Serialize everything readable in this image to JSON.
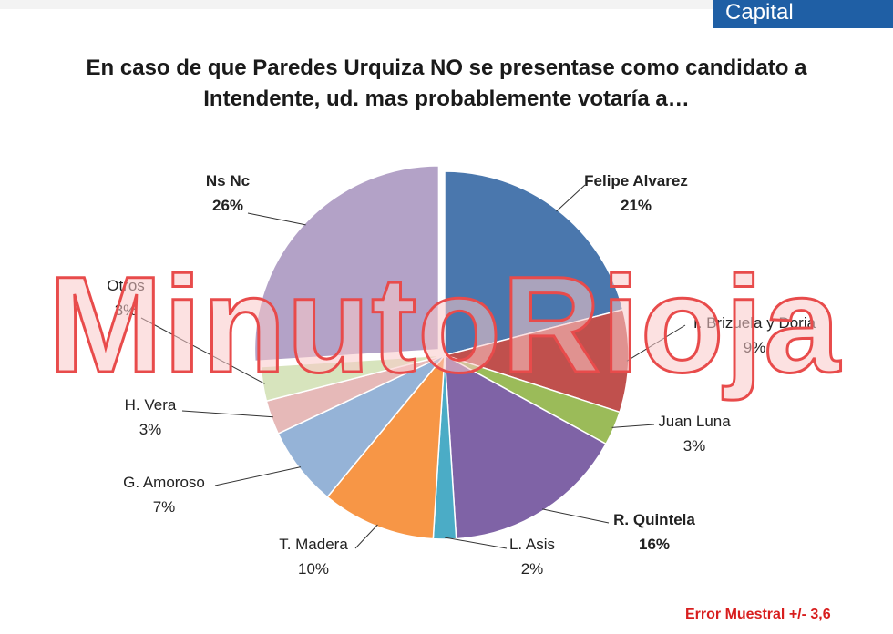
{
  "header": {
    "badge": "Capital"
  },
  "title_line1": "En caso de que Paredes Urquiza NO se presentase como candidato a",
  "title_line2": "Intendente, ud. mas probablemente  votaría a…",
  "watermark": "MinutoRioja",
  "footer": {
    "error_note": "Error Muestral +/- 3,6"
  },
  "colors": {
    "watermark_fill": "#f9c9c9",
    "watermark_stroke": "#e84b4b",
    "error_red": "#d81e1e",
    "badge_blue": "#1f5fa5"
  },
  "chart_data": {
    "type": "pie",
    "start": "12 o'clock, clockwise",
    "exploded_slice": "Ns Nc",
    "slices": [
      {
        "label": "Felipe Alvarez",
        "value": 21,
        "value_label": "21%",
        "color": "#4a77ad",
        "bold": true
      },
      {
        "label": "I. Brizuela y Doria",
        "value": 9,
        "value_label": "9%",
        "color": "#c0504d",
        "bold": false
      },
      {
        "label": "Juan Luna",
        "value": 3,
        "value_label": "3%",
        "color": "#9bbb59",
        "bold": false
      },
      {
        "label": "R. Quintela",
        "value": 16,
        "value_label": "16%",
        "color": "#7f63a6",
        "bold": true
      },
      {
        "label": "L. Asis",
        "value": 2,
        "value_label": "2%",
        "color": "#4bacc6",
        "bold": false
      },
      {
        "label": "T. Madera",
        "value": 10,
        "value_label": "10%",
        "color": "#f79646",
        "bold": false
      },
      {
        "label": "G. Amoroso",
        "value": 7,
        "value_label": "7%",
        "color": "#95b3d7",
        "bold": false
      },
      {
        "label": "H. Vera",
        "value": 3,
        "value_label": "3%",
        "color": "#e6b9b8",
        "bold": false
      },
      {
        "label": "Otros",
        "value": 3,
        "value_label": "3%",
        "color": "#d7e4bd",
        "bold": false
      },
      {
        "label": "Ns Nc",
        "value": 26,
        "value_label": "26%",
        "color": "#b3a2c7",
        "bold": true
      }
    ]
  }
}
